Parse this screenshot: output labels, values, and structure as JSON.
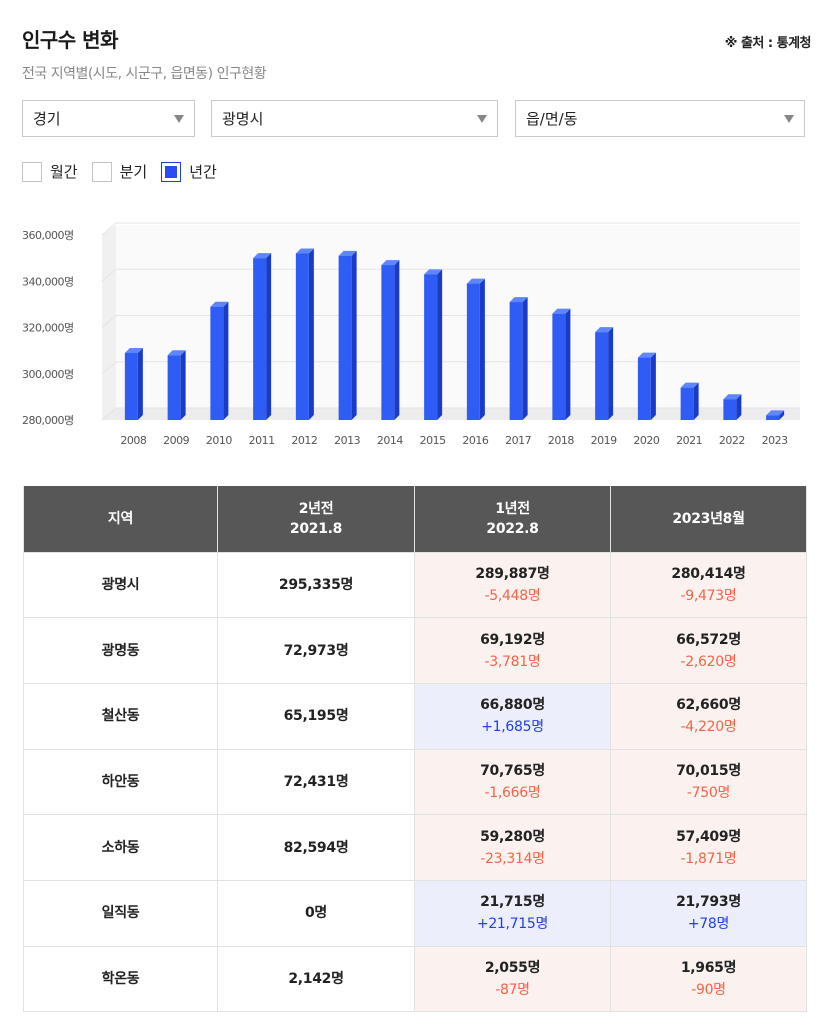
{
  "header": {
    "title": "인구수 변화",
    "source": "※ 출처 : 통계청",
    "subtitle": "전국 지역별(시도, 시군구, 읍면동) 인구현황"
  },
  "filters": {
    "sido": "경기",
    "sigungu": "광명시",
    "eupmyeondong": "읍/면/동"
  },
  "period_options": [
    {
      "label": "월간",
      "checked": false
    },
    {
      "label": "분기",
      "checked": false
    },
    {
      "label": "년간",
      "checked": true
    }
  ],
  "colors": {
    "bar_front": "#2f5cf4",
    "bar_side": "#1a3cc4",
    "bar_top": "#5d86ff",
    "header_bg": "#575757",
    "decrease_bg": "#fbf1ee",
    "increase_bg": "#eceefc",
    "decrease_text": "#f0654a",
    "increase_text": "#2040e6"
  },
  "chart_data": {
    "type": "bar",
    "categories": [
      "2008",
      "2009",
      "2010",
      "2011",
      "2012",
      "2013",
      "2014",
      "2015",
      "2016",
      "2017",
      "2018",
      "2019",
      "2020",
      "2021",
      "2022",
      "2023"
    ],
    "values": [
      309000,
      308000,
      329000,
      350000,
      352000,
      351000,
      347000,
      343000,
      339000,
      331000,
      326000,
      318000,
      307000,
      294000,
      289000,
      282000
    ],
    "y_tick_labels": [
      "360,000명",
      "340,000명",
      "320,000명",
      "300,000명",
      "280,000명"
    ],
    "ylim": [
      280000,
      360000
    ],
    "grid": true,
    "legend": "none"
  },
  "table": {
    "headers": [
      {
        "line1": "지역",
        "line2": ""
      },
      {
        "line1": "2년전",
        "line2": "2021.8"
      },
      {
        "line1": "1년전",
        "line2": "2022.8"
      },
      {
        "line1": "2023년8월",
        "line2": ""
      }
    ],
    "rows": [
      {
        "region": "광명시",
        "y2021": "295,335명",
        "y2022": "289,887명",
        "y2022_diff": "-5,448명",
        "y2022_trend": "dec",
        "y2023": "280,414명",
        "y2023_diff": "-9,473명",
        "y2023_trend": "dec"
      },
      {
        "region": "광명동",
        "y2021": "72,973명",
        "y2022": "69,192명",
        "y2022_diff": "-3,781명",
        "y2022_trend": "dec",
        "y2023": "66,572명",
        "y2023_diff": "-2,620명",
        "y2023_trend": "dec"
      },
      {
        "region": "철산동",
        "y2021": "65,195명",
        "y2022": "66,880명",
        "y2022_diff": "+1,685명",
        "y2022_trend": "inc",
        "y2023": "62,660명",
        "y2023_diff": "-4,220명",
        "y2023_trend": "dec"
      },
      {
        "region": "하안동",
        "y2021": "72,431명",
        "y2022": "70,765명",
        "y2022_diff": "-1,666명",
        "y2022_trend": "dec",
        "y2023": "70,015명",
        "y2023_diff": "-750명",
        "y2023_trend": "dec"
      },
      {
        "region": "소하동",
        "y2021": "82,594명",
        "y2022": "59,280명",
        "y2022_diff": "-23,314명",
        "y2022_trend": "dec",
        "y2023": "57,409명",
        "y2023_diff": "-1,871명",
        "y2023_trend": "dec"
      },
      {
        "region": "일직동",
        "y2021": "0명",
        "y2022": "21,715명",
        "y2022_diff": "+21,715명",
        "y2022_trend": "inc",
        "y2023": "21,793명",
        "y2023_diff": "+78명",
        "y2023_trend": "inc"
      },
      {
        "region": "학온동",
        "y2021": "2,142명",
        "y2022": "2,055명",
        "y2022_diff": "-87명",
        "y2022_trend": "dec",
        "y2023": "1,965명",
        "y2023_diff": "-90명",
        "y2023_trend": "dec"
      }
    ]
  }
}
